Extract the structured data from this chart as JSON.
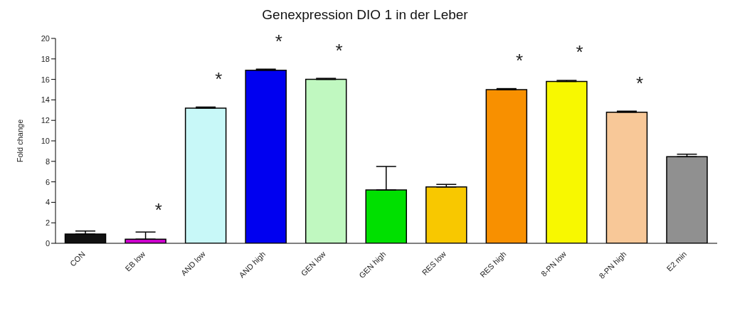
{
  "chart_data": {
    "type": "bar",
    "title": "Genexpression DIO 1 in der Leber",
    "ylabel": "Fold change",
    "categories": [
      "CON",
      "EB low",
      "AND low",
      "AND high",
      "GEN low",
      "GEN high",
      "RES low",
      "RES high",
      "8-PN low",
      "8-PN high",
      "E2 min"
    ],
    "values": [
      0.9,
      0.4,
      13.2,
      16.9,
      16.0,
      5.2,
      5.5,
      15.0,
      15.8,
      12.8,
      8.45
    ],
    "colors": [
      "#111111",
      "#cc00cc",
      "#c8f8f8",
      "#0000f0",
      "#c0f8c0",
      "#00e000",
      "#f8c800",
      "#f89000",
      "#f8f800",
      "#f8c898",
      "#909090"
    ],
    "errors": [
      [
        0.9,
        1.2
      ],
      [
        0.4,
        1.1
      ],
      [
        13.2,
        13.3
      ],
      [
        16.9,
        17.0
      ],
      [
        16.0,
        16.1
      ],
      [
        5.2,
        7.5
      ],
      [
        5.5,
        5.75
      ],
      [
        15.0,
        15.1
      ],
      [
        15.8,
        15.9
      ],
      [
        12.8,
        12.9
      ],
      [
        8.45,
        8.7
      ]
    ],
    "ylim": [
      0,
      20
    ],
    "yticks": [
      0,
      2,
      4,
      6,
      8,
      10,
      12,
      14,
      16,
      18,
      20
    ],
    "grid": false,
    "legend": false,
    "annotations": [
      {
        "text": "*",
        "x": "EB low",
        "y": 0.4
      },
      {
        "text": "*",
        "x": "AND low",
        "y": 13.2
      },
      {
        "text": "*",
        "x": "AND high",
        "y": 16.9
      },
      {
        "text": "*",
        "x": "GEN low",
        "y": 16.0
      },
      {
        "text": "*",
        "x": "RES high",
        "y": 15.0
      },
      {
        "text": "*",
        "x": "8-PN low",
        "y": 15.8
      },
      {
        "text": "*",
        "x": "8-PN high",
        "y": 12.8
      }
    ]
  }
}
